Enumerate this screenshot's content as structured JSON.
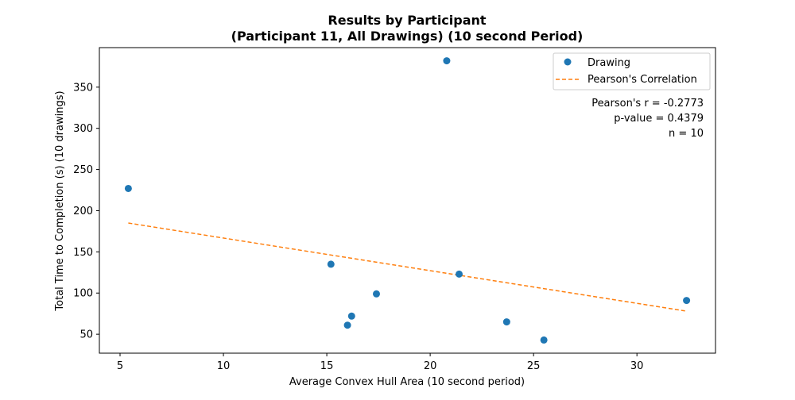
{
  "chart_data": {
    "type": "scatter",
    "title": "Results by Participant",
    "subtitle": "(Participant 11, All Drawings) (10 second Period)",
    "xlabel": "Average Convex Hull Area (10 second period)",
    "ylabel": "Total Time to Completion (s) (10 drawings)",
    "xlim": [
      4.0,
      33.8
    ],
    "ylim": [
      27,
      398
    ],
    "xticks": [
      5,
      10,
      15,
      20,
      25,
      30
    ],
    "yticks": [
      50,
      100,
      150,
      200,
      250,
      300,
      350
    ],
    "grid": false,
    "legend_position": "top-right",
    "series": [
      {
        "name": "Drawing",
        "kind": "scatter",
        "color": "#1f77b4",
        "x": [
          5.4,
          15.2,
          16.0,
          16.2,
          17.4,
          20.8,
          21.4,
          23.7,
          25.5,
          32.4
        ],
        "y": [
          227,
          135,
          61,
          72,
          99,
          382,
          123,
          65,
          43,
          91
        ]
      },
      {
        "name": "Pearson's Correlation",
        "kind": "line",
        "style": "dashed",
        "color": "#ff7f0e",
        "x": [
          5.4,
          32.4
        ],
        "y": [
          185,
          78
        ]
      }
    ],
    "annotations": [
      "Pearson's r = -0.2773",
      "p-value = 0.4379",
      "n = 10"
    ]
  }
}
